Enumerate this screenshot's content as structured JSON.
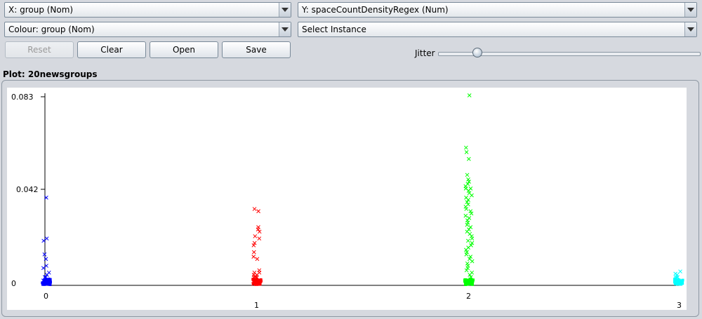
{
  "controls": {
    "x_axis": "X: group (Nom)",
    "y_axis": "Y: spaceCountDensityRegex (Num)",
    "colour": "Colour: group (Nom)",
    "instance": "Select Instance"
  },
  "buttons": {
    "reset": "Reset",
    "clear": "Clear",
    "open": "Open",
    "save": "Save"
  },
  "jitter": {
    "label": "Jitter",
    "level": 0.15
  },
  "plot": {
    "title": "Plot: 20newsgroups"
  },
  "colors": {
    "g0": "#0000ff",
    "g1": "#ff0000",
    "g2": "#00ff00",
    "g3": "#00ffff"
  },
  "chart_data": {
    "type": "scatter",
    "xlabel": "",
    "ylabel": "",
    "x_ticks": [
      "0",
      "1",
      "2",
      "3"
    ],
    "y_ticks": [
      "0",
      "0.042",
      "0.083"
    ],
    "ylim": [
      0,
      0.083
    ],
    "series": [
      {
        "x": 0,
        "color": "#0000ff",
        "points": [
          0.038,
          0.02,
          0.019,
          0.013,
          0.011,
          0.008,
          0.007,
          0.005,
          0.004,
          0.003,
          0.003,
          0.002,
          0.002,
          0.0015,
          0.001,
          0.001,
          0.0008,
          0.0005,
          0.0005,
          0.0003,
          0.0002,
          0.0001,
          0,
          0,
          0
        ]
      },
      {
        "x": 1,
        "color": "#ff0000",
        "points": [
          0.033,
          0.032,
          0.025,
          0.024,
          0.023,
          0.021,
          0.02,
          0.018,
          0.017,
          0.014,
          0.012,
          0.011,
          0.006,
          0.005,
          0.005,
          0.004,
          0.004,
          0.003,
          0.003,
          0.003,
          0.002,
          0.002,
          0.002,
          0.0015,
          0.0015,
          0.001,
          0.001,
          0.001,
          0.0008,
          0.0005,
          0.0005,
          0.0003,
          0.0002,
          0,
          0,
          0
        ]
      },
      {
        "x": 2,
        "color": "#00ff00",
        "points": [
          0.083,
          0.06,
          0.058,
          0.055,
          0.048,
          0.046,
          0.045,
          0.044,
          0.043,
          0.042,
          0.042,
          0.041,
          0.04,
          0.039,
          0.038,
          0.037,
          0.036,
          0.035,
          0.034,
          0.033,
          0.032,
          0.031,
          0.03,
          0.029,
          0.028,
          0.027,
          0.026,
          0.025,
          0.024,
          0.023,
          0.022,
          0.021,
          0.02,
          0.019,
          0.018,
          0.017,
          0.016,
          0.015,
          0.014,
          0.013,
          0.012,
          0.011,
          0.01,
          0.009,
          0.008,
          0.007,
          0.006,
          0.005,
          0.004,
          0.003,
          0.002,
          0.001,
          0.0005,
          0
        ]
      },
      {
        "x": 3,
        "color": "#00ffff",
        "points": [
          0.0055,
          0.0045,
          0.004,
          0.003,
          0.003,
          0.0025,
          0.002,
          0.0015,
          0.001,
          0.001,
          0.0005,
          0.0003,
          0
        ]
      }
    ]
  }
}
